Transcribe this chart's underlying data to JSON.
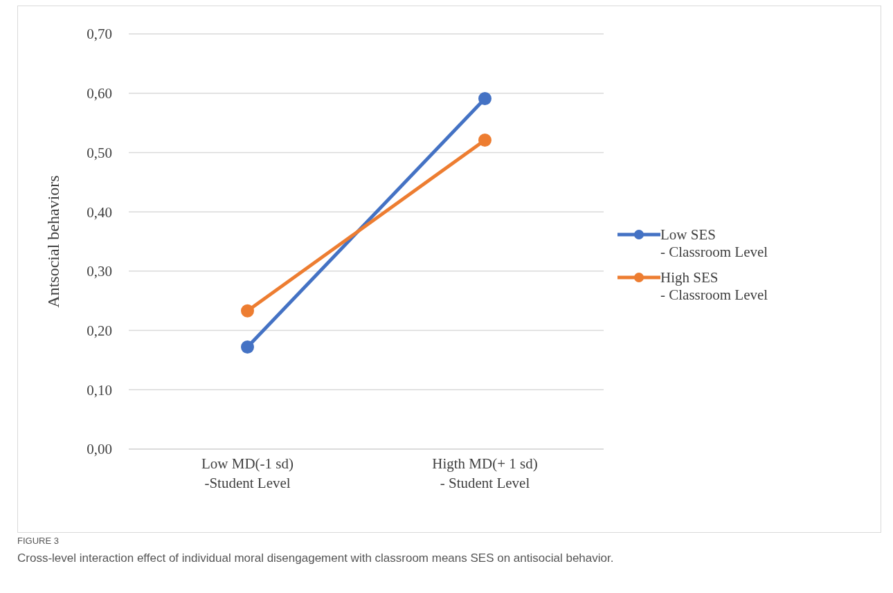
{
  "chart_data": {
    "type": "line",
    "ylabel": "Antsocial behaviors",
    "categories": [
      "Low MD(-1 sd)\n-Student Level",
      "Higth MD(+ 1 sd)\n- Student Level"
    ],
    "series": [
      {
        "name": "Low SES\n- Classroom Level",
        "color": "#4472c4",
        "values": [
          0.172,
          0.591
        ]
      },
      {
        "name": "High SES\n- Classroom Level",
        "color": "#ed7d31",
        "values": [
          0.233,
          0.521
        ]
      }
    ],
    "ylim": [
      0,
      0.7
    ],
    "yticks": [
      {
        "value": 0,
        "label": "0,00"
      },
      {
        "value": 0.1,
        "label": "0,10"
      },
      {
        "value": 0.2,
        "label": "0,20"
      },
      {
        "value": 0.3,
        "label": "0,30"
      },
      {
        "value": 0.4,
        "label": "0,40"
      },
      {
        "value": 0.5,
        "label": "0,50"
      },
      {
        "value": 0.6,
        "label": "0,60"
      },
      {
        "value": 0.7,
        "label": "0,70"
      }
    ],
    "grid": "y",
    "legend": "right",
    "marker": "circle",
    "line_style": "solid",
    "annotations": [
      "FIGURE 3",
      "Cross-level interaction effect of individual moral disengagement with classroom means SES on antisocial behavior."
    ]
  }
}
